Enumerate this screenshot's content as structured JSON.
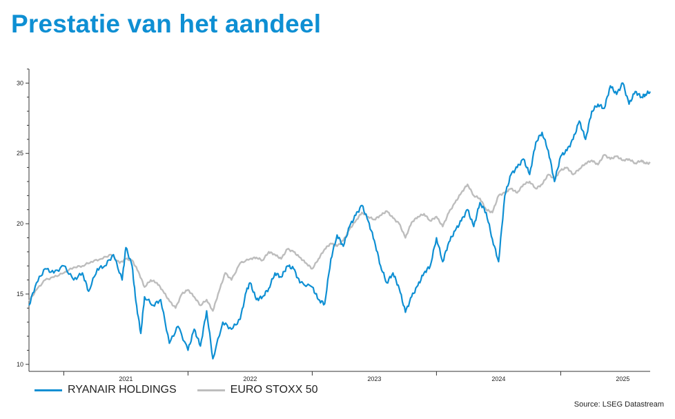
{
  "title": "Prestatie van het aandeel",
  "source": "Source: LSEG Datastream",
  "colors": {
    "ryanair": "#0e8fd3",
    "stoxx": "#bdbdbd",
    "title": "#0e8fd3"
  },
  "chart_data": {
    "type": "line",
    "title": "Prestatie van het aandeel",
    "xlabel": "",
    "ylabel": "",
    "xlim": [
      2020.72,
      2025.72
    ],
    "ylim": [
      9.5,
      31
    ],
    "y_ticks": [
      10,
      15,
      20,
      25,
      30
    ],
    "x_ticks": [
      "2021",
      "2022",
      "2023",
      "2024",
      "2025"
    ],
    "grid": false,
    "legend_position": "bottom-left",
    "series": [
      {
        "name": "RYANAIR HOLDINGS",
        "color": "#0e8fd3",
        "x": [
          2020.72,
          2020.78,
          2020.85,
          2020.92,
          2021.0,
          2021.08,
          2021.15,
          2021.2,
          2021.27,
          2021.33,
          2021.4,
          2021.47,
          2021.5,
          2021.55,
          2021.58,
          2021.62,
          2021.65,
          2021.72,
          2021.78,
          2021.85,
          2021.92,
          2022.0,
          2022.05,
          2022.1,
          2022.15,
          2022.2,
          2022.28,
          2022.35,
          2022.42,
          2022.47,
          2022.5,
          2022.55,
          2022.6,
          2022.65,
          2022.7,
          2022.75,
          2022.8,
          2022.85,
          2022.9,
          2023.0,
          2023.05,
          2023.1,
          2023.15,
          2023.2,
          2023.25,
          2023.3,
          2023.35,
          2023.4,
          2023.45,
          2023.5,
          2023.55,
          2023.6,
          2023.65,
          2023.7,
          2023.75,
          2023.8,
          2023.85,
          2023.9,
          2023.95,
          2024.0,
          2024.05,
          2024.1,
          2024.15,
          2024.2,
          2024.25,
          2024.3,
          2024.35,
          2024.4,
          2024.45,
          2024.5,
          2024.55,
          2024.6,
          2024.65,
          2024.7,
          2024.75,
          2024.8,
          2024.85,
          2024.9,
          2024.95,
          2025.0,
          2025.05,
          2025.1,
          2025.15,
          2025.2,
          2025.25,
          2025.3,
          2025.35,
          2025.4,
          2025.45,
          2025.5,
          2025.55,
          2025.6,
          2025.65,
          2025.68,
          2025.72
        ],
        "values": [
          14.2,
          15.8,
          16.8,
          16.5,
          17.0,
          16.0,
          16.5,
          15.2,
          16.8,
          17.0,
          17.8,
          16.0,
          18.3,
          17.0,
          14.5,
          12.2,
          14.8,
          14.2,
          14.6,
          11.5,
          12.7,
          11.0,
          12.5,
          11.3,
          13.8,
          10.4,
          13.0,
          12.5,
          13.2,
          15.2,
          15.8,
          14.6,
          14.8,
          15.4,
          16.5,
          16.2,
          17.0,
          16.8,
          15.8,
          15.5,
          14.6,
          14.3,
          17.5,
          19.2,
          18.4,
          19.8,
          20.6,
          21.3,
          20.2,
          18.8,
          17.0,
          15.8,
          16.5,
          15.4,
          13.7,
          14.8,
          15.6,
          16.5,
          17.0,
          19.0,
          17.3,
          18.7,
          19.5,
          20.2,
          21.0,
          19.8,
          21.5,
          20.8,
          18.9,
          17.3,
          22.0,
          23.5,
          24.0,
          24.6,
          23.5,
          25.8,
          26.5,
          25.2,
          23.0,
          24.8,
          25.2,
          26.0,
          27.3,
          26.0,
          28.0,
          28.5,
          28.2,
          29.8,
          29.2,
          30.0,
          28.5,
          29.4,
          29.0,
          29.2,
          29.4
        ]
      },
      {
        "name": "EURO STOXX 50",
        "color": "#bdbdbd",
        "x": [
          2020.72,
          2020.78,
          2020.85,
          2020.92,
          2021.0,
          2021.08,
          2021.15,
          2021.22,
          2021.3,
          2021.38,
          2021.45,
          2021.5,
          2021.55,
          2021.6,
          2021.65,
          2021.7,
          2021.75,
          2021.8,
          2021.85,
          2021.9,
          2021.95,
          2022.0,
          2022.05,
          2022.1,
          2022.15,
          2022.2,
          2022.25,
          2022.3,
          2022.35,
          2022.42,
          2022.5,
          2022.55,
          2022.6,
          2022.65,
          2022.7,
          2022.75,
          2022.8,
          2022.85,
          2022.9,
          2022.95,
          2023.0,
          2023.05,
          2023.1,
          2023.15,
          2023.2,
          2023.25,
          2023.3,
          2023.35,
          2023.4,
          2023.45,
          2023.5,
          2023.55,
          2023.6,
          2023.65,
          2023.7,
          2023.75,
          2023.8,
          2023.85,
          2023.9,
          2023.95,
          2024.0,
          2024.05,
          2024.1,
          2024.15,
          2024.2,
          2024.25,
          2024.3,
          2024.35,
          2024.4,
          2024.45,
          2024.5,
          2024.55,
          2024.6,
          2024.65,
          2024.7,
          2024.75,
          2024.8,
          2024.85,
          2024.9,
          2024.95,
          2025.0,
          2025.05,
          2025.1,
          2025.15,
          2025.2,
          2025.25,
          2025.3,
          2025.35,
          2025.4,
          2025.45,
          2025.5,
          2025.55,
          2025.6,
          2025.65,
          2025.68,
          2025.72
        ],
        "values": [
          14.5,
          15.3,
          16.0,
          16.2,
          16.5,
          16.9,
          17.0,
          17.3,
          17.5,
          17.8,
          17.2,
          17.5,
          17.4,
          16.6,
          15.5,
          16.0,
          15.8,
          15.2,
          14.5,
          14.0,
          15.0,
          15.3,
          14.8,
          14.2,
          14.6,
          13.8,
          15.2,
          16.5,
          16.0,
          17.2,
          17.5,
          17.6,
          17.4,
          18.0,
          17.8,
          17.5,
          18.2,
          18.0,
          17.6,
          17.2,
          16.8,
          17.5,
          18.2,
          18.6,
          18.4,
          18.8,
          19.6,
          20.2,
          20.8,
          20.5,
          20.3,
          20.6,
          20.9,
          20.4,
          20.0,
          19.0,
          20.1,
          20.5,
          20.7,
          20.2,
          20.5,
          19.8,
          20.8,
          21.5,
          22.2,
          22.8,
          22.0,
          21.8,
          21.0,
          20.8,
          22.0,
          22.2,
          22.5,
          22.2,
          22.8,
          23.0,
          22.5,
          22.8,
          23.5,
          23.2,
          23.8,
          24.0,
          23.5,
          23.9,
          24.3,
          24.5,
          24.2,
          24.9,
          24.6,
          24.8,
          24.5,
          24.6,
          24.3,
          24.5,
          24.3,
          24.3
        ]
      }
    ]
  }
}
